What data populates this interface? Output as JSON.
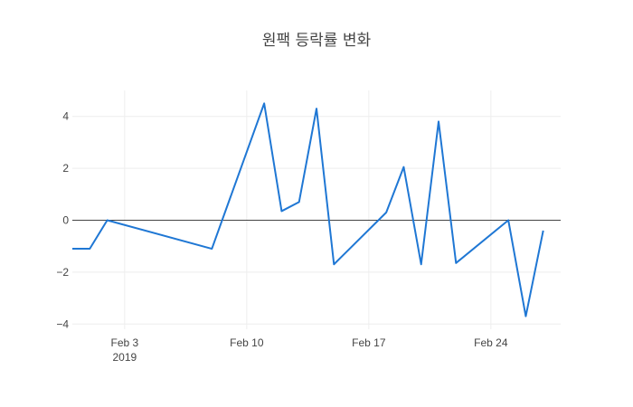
{
  "chart_data": {
    "type": "line",
    "title": "원팩 등락률 변화",
    "xlabel": "",
    "ylabel": "",
    "xlim": [
      "2019-01-31",
      "2019-02-28"
    ],
    "ylim": [
      -4.2,
      5.0
    ],
    "grid": true,
    "y_ticks": [
      {
        "value": 4,
        "label": "4"
      },
      {
        "value": 2,
        "label": "2"
      },
      {
        "value": 0,
        "label": "0"
      },
      {
        "value": -2,
        "label": "−2"
      },
      {
        "value": -4,
        "label": "−4"
      }
    ],
    "x_ticks": [
      {
        "value": "2019-02-03",
        "label": "Feb 3",
        "sublabel": "2019"
      },
      {
        "value": "2019-02-10",
        "label": "Feb 10",
        "sublabel": ""
      },
      {
        "value": "2019-02-17",
        "label": "Feb 17",
        "sublabel": ""
      },
      {
        "value": "2019-02-24",
        "label": "Feb 24",
        "sublabel": ""
      }
    ],
    "series": [
      {
        "color": "#1f77d4",
        "points": [
          {
            "x": "2019-01-31",
            "y": -1.1
          },
          {
            "x": "2019-02-01",
            "y": -1.1
          },
          {
            "x": "2019-02-02",
            "y": 0.0
          },
          {
            "x": "2019-02-08",
            "y": -1.1
          },
          {
            "x": "2019-02-11",
            "y": 4.5
          },
          {
            "x": "2019-02-12",
            "y": 0.35
          },
          {
            "x": "2019-02-13",
            "y": 0.7
          },
          {
            "x": "2019-02-14",
            "y": 4.3
          },
          {
            "x": "2019-02-15",
            "y": -1.7
          },
          {
            "x": "2019-02-18",
            "y": 0.3
          },
          {
            "x": "2019-02-19",
            "y": 2.05
          },
          {
            "x": "2019-02-20",
            "y": -1.7
          },
          {
            "x": "2019-02-21",
            "y": 3.8
          },
          {
            "x": "2019-02-22",
            "y": -1.65
          },
          {
            "x": "2019-02-25",
            "y": 0.0
          },
          {
            "x": "2019-02-26",
            "y": -3.7
          },
          {
            "x": "2019-02-27",
            "y": -0.4
          }
        ]
      }
    ]
  }
}
